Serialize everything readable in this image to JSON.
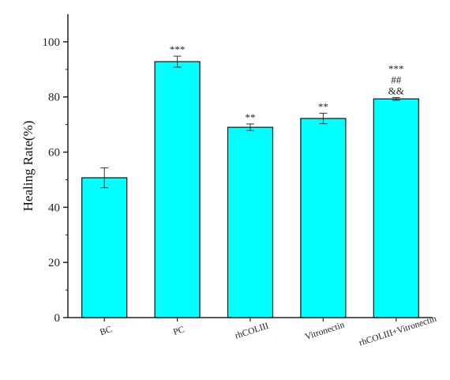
{
  "chart_data": {
    "type": "bar",
    "categories": [
      "BC",
      "PC",
      "rhCOLIII",
      "Vitronectin",
      "rhCOLIII+Vitronectin"
    ],
    "values": [
      50.7,
      92.8,
      69.0,
      72.2,
      79.3
    ],
    "errors": [
      3.6,
      2.0,
      1.2,
      1.9,
      0.5
    ],
    "significance": [
      [],
      [
        "***"
      ],
      [
        "**"
      ],
      [
        "**"
      ],
      [
        "***",
        "##",
        "&&"
      ]
    ],
    "ylabel": "Healing Rate(%)",
    "xlabel": "",
    "ylim": [
      0,
      110
    ],
    "yticks": [
      0,
      20,
      40,
      60,
      80,
      100
    ],
    "bar_color": "#00ffff",
    "grid": false,
    "legend": "none"
  }
}
